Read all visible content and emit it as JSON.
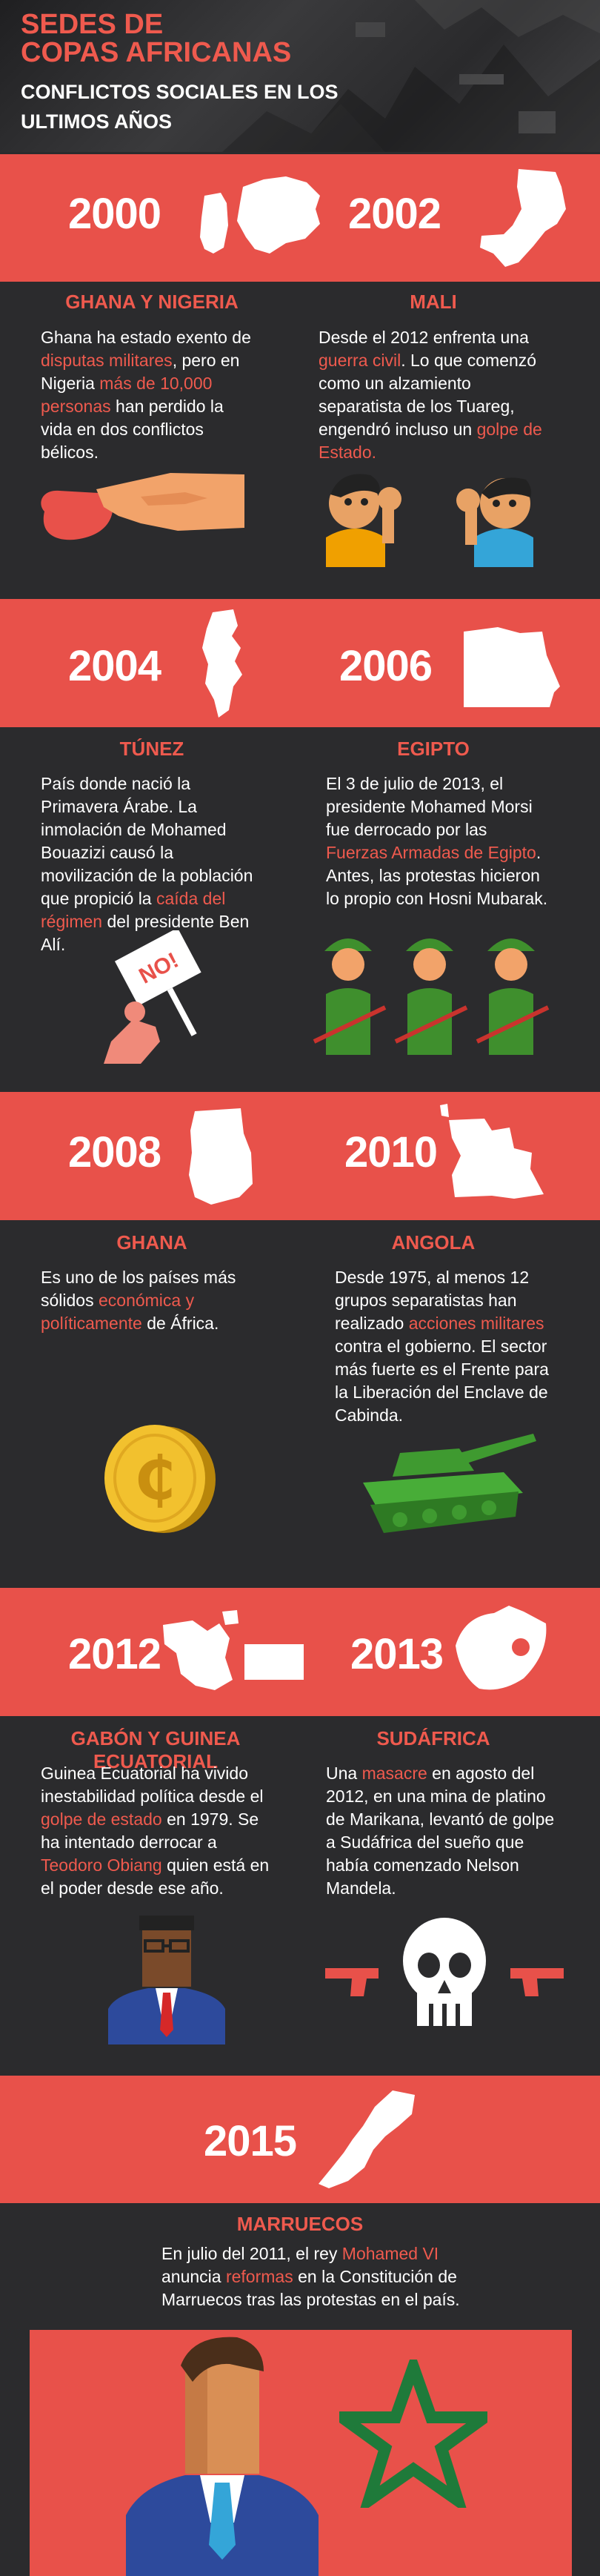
{
  "header": {
    "title_line1": "SEDES DE",
    "title_line2": "COPAS AFRICANAS",
    "subtitle_line1": "CONFLICTOS SOCIALES EN LOS",
    "subtitle_line2": "ULTIMOS AÑOS"
  },
  "colors": {
    "red": "#e8514a",
    "dark": "#2b2b2d",
    "highlight": "#ef5a4e",
    "text": "#ffffff"
  },
  "sections": [
    {
      "left": {
        "year": "2000",
        "country": "GHANA Y NIGERIA",
        "text": [
          {
            "t": "Ghana ha estado exento de "
          },
          {
            "t": "disputas militares",
            "h": true
          },
          {
            "t": ", pero en Nigeria "
          },
          {
            "t": "más de 10,000 personas",
            "h": true
          },
          {
            "t": " han perdido la vida en dos conflictos bélicos."
          }
        ],
        "icon": "hand-blood-icon"
      },
      "right": {
        "year": "2002",
        "country": "MALI",
        "text": [
          {
            "t": "Desde el 2012 enfrenta una "
          },
          {
            "t": "guerra civil",
            "h": true
          },
          {
            "t": ". Lo que comenzó como un alzamiento separatista de los Tuareg, engendró incluso un "
          },
          {
            "t": "golpe de Estado.",
            "h": true
          }
        ],
        "icon": "protesters-icon"
      }
    },
    {
      "left": {
        "year": "2004",
        "country": "TÚNEZ",
        "text": [
          {
            "t": "País donde nació la Primavera Árabe. La inmolación de Mohamed Bouazizi causó la movilización de la población que propició la "
          },
          {
            "t": "caída del régimen",
            "h": true
          },
          {
            "t": " del presidente Ben Alí."
          }
        ],
        "icon": "protest-sign-icon",
        "sign_text": "NO!"
      },
      "right": {
        "year": "2006",
        "country": "EGIPTO",
        "text": [
          {
            "t": "El 3 de julio de 2013, el presidente Mohamed Morsi fue derrocado por las "
          },
          {
            "t": "Fuerzas Armadas de Egipto",
            "h": true
          },
          {
            "t": ". Antes, las protestas hicieron lo propio con Hosni Mubarak."
          }
        ],
        "icon": "soldiers-icon"
      }
    },
    {
      "left": {
        "year": "2008",
        "country": "GHANA",
        "text": [
          {
            "t": "Es uno de los países más sólidos "
          },
          {
            "t": "económica y políticamente",
            "h": true
          },
          {
            "t": " de África."
          }
        ],
        "icon": "cedi-coin-icon",
        "coin_symbol": "₵"
      },
      "right": {
        "year": "2010",
        "country": "ANGOLA",
        "text": [
          {
            "t": "Desde 1975, al menos 12 grupos separatistas han realizado "
          },
          {
            "t": "acciones militares",
            "h": true
          },
          {
            "t": " contra el gobierno. El sector más fuerte es el Frente para la Liberación del Enclave de Cabinda."
          }
        ],
        "icon": "tank-icon"
      }
    },
    {
      "left": {
        "year": "2012",
        "country": "GABÓN Y GUINEA ECUATORIAL",
        "text": [
          {
            "t": "Guinea Ecuatorial ha vivido inestabilidad política desde el "
          },
          {
            "t": "golpe de estado",
            "h": true
          },
          {
            "t": " en 1979. Se ha intentado derrocar a "
          },
          {
            "t": "Teodoro Obiang",
            "h": true
          },
          {
            "t": " quien está en el poder desde ese año."
          }
        ],
        "icon": "politician-icon"
      },
      "right": {
        "year": "2013",
        "country": "SUDÁFRICA",
        "text": [
          {
            "t": "Una "
          },
          {
            "t": "masacre",
            "h": true
          },
          {
            "t": " en agosto del 2012, en una mina de platino de Marikana, levantó de golpe a Sudáfrica del sueño que había comenzado Nelson Mandela."
          }
        ],
        "icon": "skull-guns-icon"
      }
    }
  ],
  "final": {
    "year": "2015",
    "country": "MARRUECOS",
    "text": [
      {
        "t": "En julio del 2011, el rey "
      },
      {
        "t": "Mohamed VI",
        "h": true
      },
      {
        "t": " anuncia "
      },
      {
        "t": "reformas",
        "h": true
      },
      {
        "t": " en la Constitución de Marruecos tras las protestas en el país."
      }
    ],
    "icons": [
      "king-icon",
      "morocco-star-icon"
    ]
  }
}
